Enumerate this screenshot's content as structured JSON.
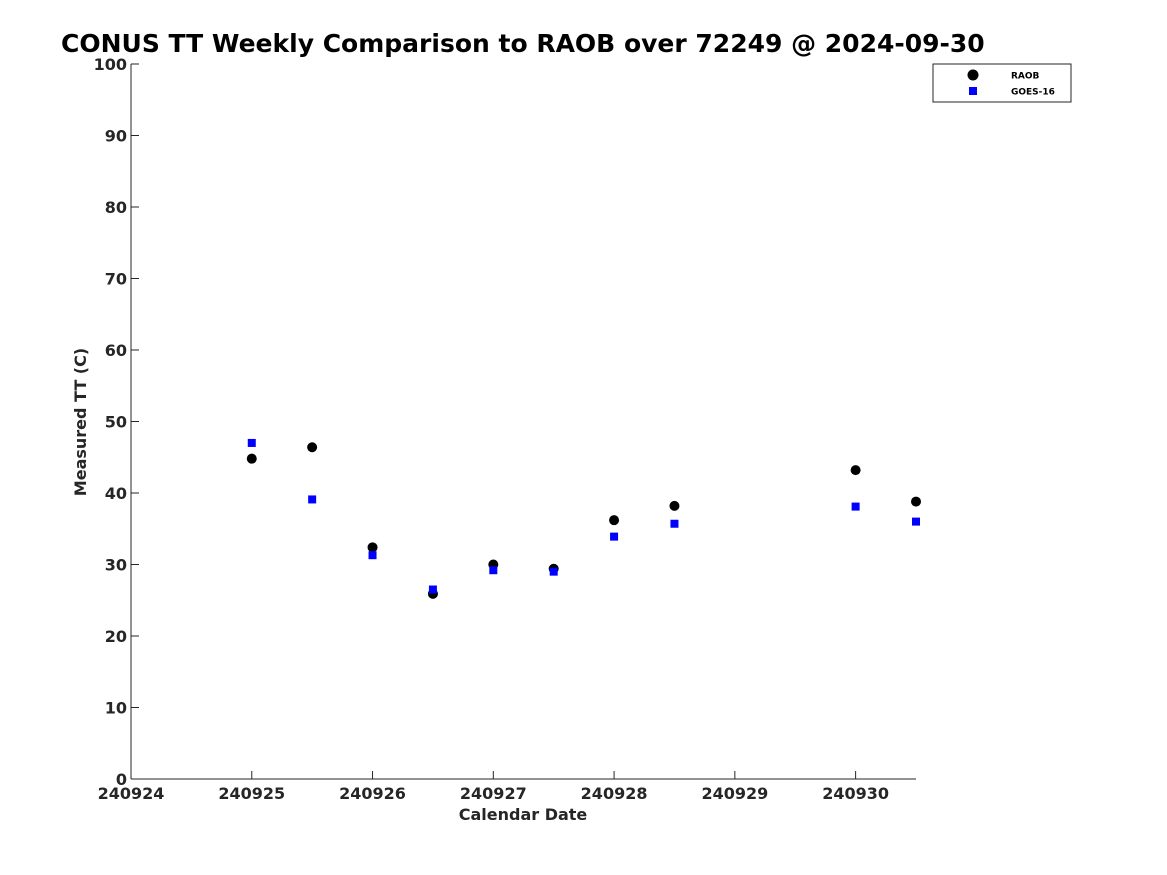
{
  "chart_data": {
    "type": "scatter",
    "title": "CONUS TT Weekly Comparison to RAOB over 72249 @ 2024-09-30",
    "xlabel": "Calendar Date",
    "ylabel": "Measured TT (C)",
    "xlim": [
      "2024-09-24",
      "2024-09-30T12:00"
    ],
    "ylim": [
      0,
      100
    ],
    "x_ticks": [
      "2024-09-24",
      "2024-09-25",
      "2024-09-26",
      "2024-09-27",
      "2024-09-28",
      "2024-09-29",
      "2024-09-30"
    ],
    "x_tick_labels": [
      "240924",
      "240925",
      "240926",
      "240927",
      "240928",
      "240929",
      "240930"
    ],
    "y_ticks": [
      0,
      10,
      20,
      30,
      40,
      50,
      60,
      70,
      80,
      90,
      100
    ],
    "grid": false,
    "legend_position": "top-right",
    "series": [
      {
        "name": "RAOB",
        "marker": "circle",
        "color": "#000000",
        "points": [
          {
            "x": "2024-09-25T00:00",
            "y": 44.8
          },
          {
            "x": "2024-09-25T12:00",
            "y": 46.4
          },
          {
            "x": "2024-09-26T00:00",
            "y": 32.4
          },
          {
            "x": "2024-09-26T12:00",
            "y": 25.9
          },
          {
            "x": "2024-09-27T00:00",
            "y": 30.0
          },
          {
            "x": "2024-09-27T12:00",
            "y": 29.4
          },
          {
            "x": "2024-09-28T00:00",
            "y": 36.2
          },
          {
            "x": "2024-09-28T12:00",
            "y": 38.2
          },
          {
            "x": "2024-09-30T00:00",
            "y": 43.2
          },
          {
            "x": "2024-09-30T12:00",
            "y": 38.8
          }
        ]
      },
      {
        "name": "GOES-16",
        "marker": "square",
        "color": "#0000ff",
        "points": [
          {
            "x": "2024-09-25T00:00",
            "y": 47.0
          },
          {
            "x": "2024-09-25T12:00",
            "y": 39.1
          },
          {
            "x": "2024-09-26T00:00",
            "y": 31.3
          },
          {
            "x": "2024-09-26T12:00",
            "y": 26.5
          },
          {
            "x": "2024-09-27T00:00",
            "y": 29.2
          },
          {
            "x": "2024-09-27T12:00",
            "y": 29.0
          },
          {
            "x": "2024-09-28T00:00",
            "y": 33.9
          },
          {
            "x": "2024-09-28T12:00",
            "y": 35.7
          },
          {
            "x": "2024-09-30T00:00",
            "y": 38.1
          },
          {
            "x": "2024-09-30T12:00",
            "y": 36.0
          }
        ]
      }
    ]
  }
}
